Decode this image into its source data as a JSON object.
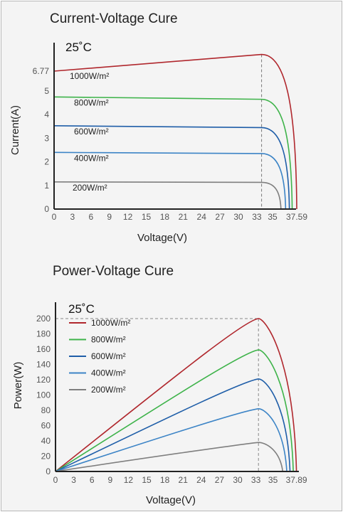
{
  "chart_data": [
    {
      "type": "line",
      "title": "Current-Voltage Cure",
      "temperature_label": "25˚C",
      "xlabel": "Voltage(V)",
      "ylabel": "Current(A)",
      "xlim": [
        0,
        37.59
      ],
      "ylim": [
        0,
        6.77
      ],
      "x_ticks": [
        "0",
        "3",
        "6",
        "9",
        "12",
        "15",
        "18",
        "21",
        "24",
        "27",
        "30",
        "33",
        "35",
        "37.59"
      ],
      "y_ticks": [
        "0",
        "1",
        "2",
        "3",
        "4",
        "5",
        "6.77"
      ],
      "marker_voltage": 33.6,
      "grid": false,
      "series": [
        {
          "name": "1000W/m²",
          "color": "#b0272d",
          "isc": 6.77,
          "imp": 6.55,
          "vmp": 33.6,
          "voc": 37.59
        },
        {
          "name": "800W/m²",
          "color": "#3eb34a",
          "isc": 4.75,
          "imp": 4.65,
          "vmp": 33.6,
          "voc": 37.1
        },
        {
          "name": "600W/m²",
          "color": "#1f5ea8",
          "isc": 3.53,
          "imp": 3.45,
          "vmp": 33.6,
          "voc": 36.8
        },
        {
          "name": "400W/m²",
          "color": "#3c84c6",
          "isc": 2.4,
          "imp": 2.35,
          "vmp": 33.6,
          "voc": 36.4
        },
        {
          "name": "200W/m²",
          "color": "#7f7f7f",
          "isc": 1.15,
          "imp": 1.13,
          "vmp": 33.6,
          "voc": 35.9
        }
      ]
    },
    {
      "type": "line",
      "title": "Power-Voltage Cure",
      "temperature_label": "25˚C",
      "xlabel": "Voltage(V)",
      "ylabel": "Power(W)",
      "xlim": [
        0,
        37.89
      ],
      "ylim": [
        0,
        210
      ],
      "x_ticks": [
        "0",
        "3",
        "6",
        "9",
        "12",
        "15",
        "18",
        "21",
        "24",
        "27",
        "30",
        "33",
        "35",
        "37.89"
      ],
      "y_ticks": [
        "0",
        "20",
        "40",
        "60",
        "80",
        "100",
        "120",
        "140",
        "160",
        "180",
        "200"
      ],
      "marker_voltage": 33.3,
      "grid": false,
      "legend_position": "top-left",
      "series": [
        {
          "name": "1000W/m²",
          "color": "#b0272d",
          "pmax": 200,
          "vmp": 33.3,
          "voc": 37.89
        },
        {
          "name": "800W/m²",
          "color": "#3eb34a",
          "pmax": 159,
          "vmp": 33.3,
          "voc": 37.5
        },
        {
          "name": "600W/m²",
          "color": "#1f5ea8",
          "pmax": 121,
          "vmp": 33.3,
          "voc": 37.1
        },
        {
          "name": "400W/m²",
          "color": "#3c84c6",
          "pmax": 82,
          "vmp": 33.3,
          "voc": 36.7
        },
        {
          "name": "200W/m²",
          "color": "#7f7f7f",
          "pmax": 38,
          "vmp": 33.3,
          "voc": 36.2
        }
      ]
    }
  ]
}
